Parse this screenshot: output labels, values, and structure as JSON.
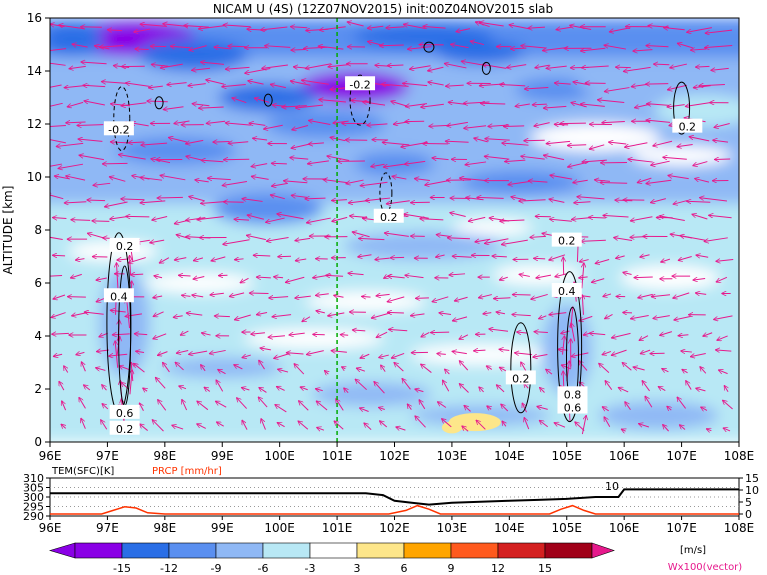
{
  "colors": {
    "u_neg15": "#8a00e6",
    "u_neg12": "#2a6ee6",
    "u_neg9": "#5a8ff0",
    "u_neg6": "#8fb8f5",
    "u_neg3": "#b8e8f5",
    "u_zero": "#ffffff",
    "u_pos3": "#fde68a",
    "u_pos6": "#ffa500",
    "u_pos9": "#ff5a1e",
    "u_pos12": "#d42020",
    "u_pos15": "#a00018",
    "vector": "#e6198c",
    "axis_line": "#00aa00",
    "precip": "#ff3300",
    "temp": "#000000"
  },
  "chart_data": [
    {
      "type": "heatmap",
      "title": "NICAM U (4S) (12Z07NOV2015) init:00Z04NOV2015 slab",
      "ylabel": "ALTITUDE [km]",
      "xlim": [
        96,
        108
      ],
      "ylim": [
        0,
        16
      ],
      "xticks": [
        "96E",
        "97E",
        "98E",
        "99E",
        "100E",
        "101E",
        "102E",
        "103E",
        "104E",
        "105E",
        "106E",
        "107E",
        "108E"
      ],
      "yticks": [
        "0",
        "2",
        "4",
        "6",
        "8",
        "10",
        "12",
        "14",
        "16"
      ],
      "reference_line_x": 101,
      "contour_labels": [
        {
          "x": 97.2,
          "y": 11.8,
          "text": "-0.2"
        },
        {
          "x": 101.4,
          "y": 13.5,
          "text": "-0.2"
        },
        {
          "x": 107.1,
          "y": 11.9,
          "text": "0.2"
        },
        {
          "x": 101.9,
          "y": 8.5,
          "text": "0.2"
        },
        {
          "x": 97.3,
          "y": 7.4,
          "text": "0.2"
        },
        {
          "x": 97.2,
          "y": 5.5,
          "text": "0.4"
        },
        {
          "x": 104.2,
          "y": 2.4,
          "text": "0.2"
        },
        {
          "x": 105.0,
          "y": 7.6,
          "text": "0.2"
        },
        {
          "x": 105.0,
          "y": 5.7,
          "text": "0.4"
        },
        {
          "x": 105.1,
          "y": 1.8,
          "text": "0.8"
        },
        {
          "x": 105.1,
          "y": 1.3,
          "text": "0.6"
        },
        {
          "x": 97.3,
          "y": 1.1,
          "text": "0.6"
        },
        {
          "x": 97.3,
          "y": 0.5,
          "text": "0.2"
        }
      ]
    },
    {
      "type": "line",
      "xlim": [
        96,
        108
      ],
      "title_temp": "TEM(SFC)[K]",
      "title_precip": "PRCP [mm/hr]",
      "left_ticks": [
        "310",
        "305",
        "300",
        "295",
        "290"
      ],
      "right_ticks": [
        "15",
        "10",
        "5",
        "0"
      ],
      "xticks": [
        "96E",
        "97E",
        "98E",
        "99E",
        "100E",
        "101E",
        "102E",
        "103E",
        "104E",
        "105E",
        "106E",
        "107E",
        "108E"
      ],
      "series": [
        {
          "name": "TEM(SFC)[K]",
          "x": [
            96,
            96.5,
            97,
            97.5,
            98,
            98.5,
            99,
            99.5,
            100,
            100.5,
            101,
            101.5,
            101.8,
            102.0,
            102.3,
            102.6,
            103,
            103.5,
            104,
            104.5,
            105,
            105.5,
            105.9,
            106.0,
            106.5,
            107,
            107.5,
            108
          ],
          "values": [
            302,
            302,
            302,
            302,
            302,
            302,
            302,
            302,
            302,
            302,
            302,
            302,
            301,
            298,
            297,
            296,
            297,
            297.5,
            298,
            298.5,
            299,
            300,
            300,
            304,
            304,
            304,
            304,
            304
          ]
        },
        {
          "name": "PRCP [mm/hr]",
          "x": [
            96,
            96.9,
            97.1,
            97.3,
            97.5,
            97.7,
            98,
            101,
            101.9,
            102.2,
            102.4,
            102.6,
            102.8,
            103.5,
            104.7,
            104.9,
            105.1,
            105.3,
            105.5,
            106,
            108
          ],
          "values": [
            0,
            0,
            1.5,
            3,
            2.5,
            0.5,
            0,
            0,
            0,
            1.5,
            3.5,
            2,
            0,
            0,
            0,
            2,
            3.5,
            1.5,
            0,
            0,
            0
          ]
        }
      ],
      "annotation": "10"
    }
  ],
  "colorbar": {
    "labels": [
      "-15",
      "-12",
      "-9",
      "-6",
      "-3",
      "3",
      "6",
      "9",
      "12",
      "15"
    ],
    "unit": "[m/s]",
    "vector_note": "Wx100(vector)"
  }
}
